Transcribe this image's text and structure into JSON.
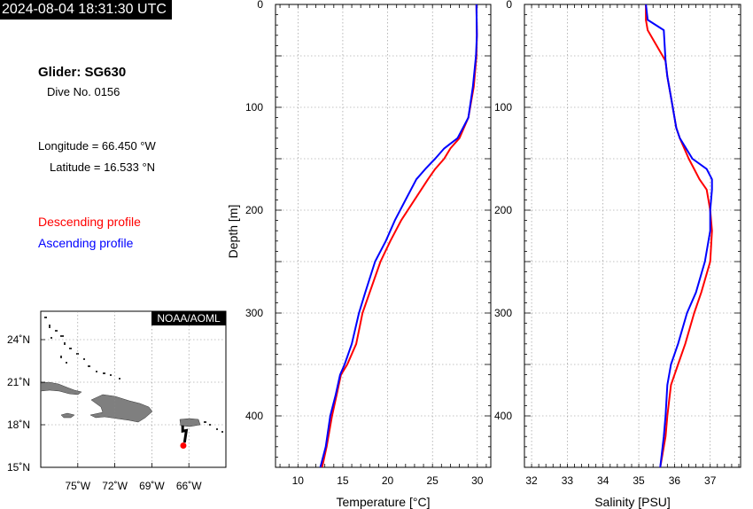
{
  "header": {
    "timestamp": "2024-08-04 18:31:30 UTC"
  },
  "info": {
    "glider": "Glider: SG630",
    "dive": "Dive No. 0156",
    "longitude": "Longitude = 66.450 °W",
    "latitude": "Latitude = 16.533 °N",
    "descending_label": "Descending profile",
    "ascending_label": "Ascending profile"
  },
  "colors": {
    "descending": "#ff0000",
    "ascending": "#0000ff",
    "land": "#7f7f7f",
    "track": "#000000",
    "position": "#ff0000"
  },
  "map": {
    "badge": "NOAA/AOML",
    "lon_range": [
      -78,
      -63
    ],
    "lat_range": [
      15,
      26
    ],
    "lon_ticks": [
      -75,
      -72,
      -69,
      -66
    ],
    "lon_tick_labels": [
      "75˚W",
      "72˚W",
      "69˚W",
      "66˚W"
    ],
    "lat_ticks": [
      15,
      18,
      21,
      24
    ],
    "lat_tick_labels": [
      "15˚N",
      "18˚N",
      "21˚N",
      "24˚N"
    ],
    "track": [
      [
        -66.5,
        17.95
      ],
      [
        -66.5,
        17.55
      ],
      [
        -66.2,
        17.6
      ],
      [
        -66.35,
        16.75
      ]
    ],
    "position": [
      -66.45,
      16.533
    ]
  },
  "chart_data": [
    {
      "type": "line",
      "xlabel": "Temperature [°C]",
      "ylabel": "Depth [m]",
      "xlim": [
        7.5,
        31.5
      ],
      "ylim": [
        450,
        0
      ],
      "xticks": [
        10,
        15,
        20,
        25,
        30
      ],
      "yticks": [
        0,
        100,
        200,
        300,
        400
      ],
      "grid": true,
      "series": [
        {
          "name": "Descending profile",
          "x": [
            29.9,
            29.95,
            29.9,
            29.6,
            29.0,
            28.0,
            27.0,
            26.3,
            25.3,
            24.5,
            23.0,
            21.5,
            20.3,
            19.2,
            18.0,
            17.2,
            16.5,
            15.5,
            14.8,
            14.3,
            13.8,
            13.2,
            12.7
          ],
          "y": [
            0,
            30,
            50,
            80,
            110,
            130,
            140,
            150,
            160,
            170,
            190,
            210,
            230,
            250,
            280,
            300,
            330,
            350,
            360,
            380,
            400,
            430,
            450
          ]
        },
        {
          "name": "Ascending profile",
          "x": [
            29.9,
            29.95,
            29.85,
            29.5,
            29.0,
            27.8,
            26.3,
            25.3,
            24.2,
            23.2,
            22.0,
            20.8,
            19.8,
            18.6,
            17.5,
            16.8,
            16.0,
            15.2,
            14.7,
            14.2,
            13.6,
            13.1,
            12.5
          ],
          "y": [
            0,
            30,
            50,
            80,
            110,
            130,
            140,
            150,
            160,
            170,
            190,
            210,
            230,
            250,
            280,
            300,
            330,
            350,
            360,
            380,
            400,
            430,
            450
          ]
        }
      ]
    },
    {
      "type": "line",
      "xlabel": "Salinity [PSU]",
      "ylabel": "",
      "xlim": [
        31.8,
        37.85
      ],
      "ylim": [
        450,
        0
      ],
      "xticks": [
        32,
        33,
        34,
        35,
        36,
        37
      ],
      "yticks": [
        0,
        100,
        200,
        300,
        400
      ],
      "grid": true,
      "series": [
        {
          "name": "Descending profile",
          "x": [
            35.2,
            35.2,
            35.25,
            35.75,
            35.8,
            35.9,
            36.05,
            36.15,
            36.4,
            36.55,
            36.7,
            36.9,
            37.0,
            37.05,
            37.0,
            36.75,
            36.55,
            36.3,
            36.1,
            35.9,
            35.8,
            35.75,
            35.6
          ],
          "y": [
            0,
            15,
            25,
            55,
            70,
            90,
            120,
            130,
            150,
            160,
            170,
            180,
            200,
            220,
            250,
            280,
            300,
            330,
            350,
            370,
            400,
            420,
            450
          ]
        },
        {
          "name": "Ascending profile",
          "x": [
            35.2,
            35.25,
            35.7,
            35.75,
            35.8,
            35.9,
            36.05,
            36.15,
            36.5,
            36.9,
            37.05,
            37.05,
            37.0,
            37.0,
            36.85,
            36.6,
            36.35,
            36.1,
            35.9,
            35.8,
            35.75,
            35.7,
            35.6
          ],
          "y": [
            0,
            15,
            25,
            55,
            70,
            90,
            120,
            130,
            150,
            160,
            170,
            180,
            200,
            220,
            250,
            280,
            300,
            330,
            350,
            370,
            400,
            420,
            450
          ]
        }
      ]
    }
  ]
}
